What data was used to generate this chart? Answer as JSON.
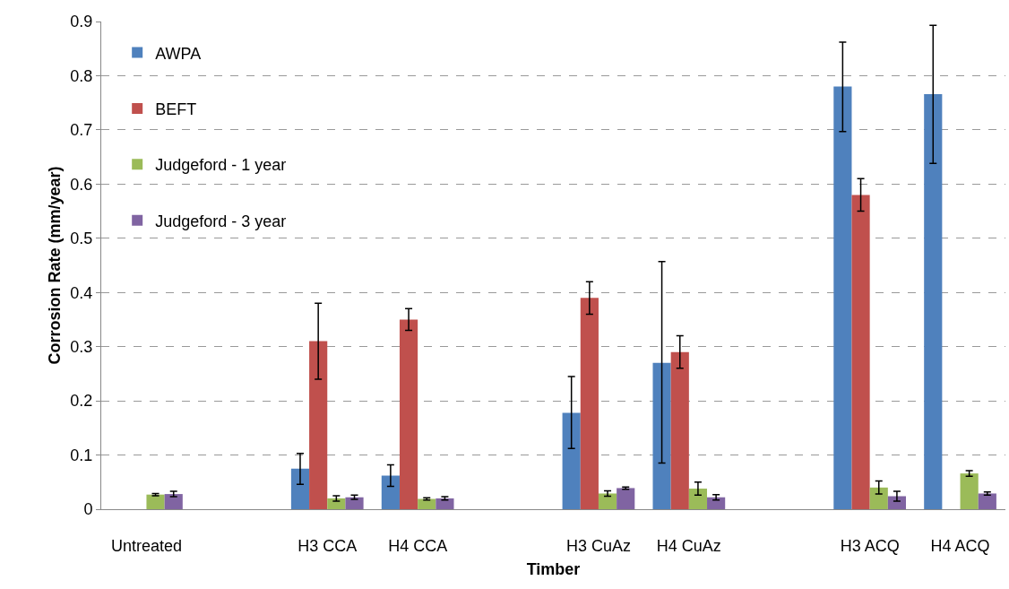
{
  "chart_data": {
    "type": "bar",
    "xlabel": "Timber",
    "ylabel": "Corrosion Rate (mm/year)",
    "categories": [
      "Untreated",
      null,
      "H3 CCA",
      "H4 CCA",
      null,
      "H3 CuAz",
      "H4 CuAz",
      null,
      "H3 ACQ",
      "H4 ACQ"
    ],
    "series": [
      {
        "name": "AWPA",
        "color": "#4f81bd",
        "values": [
          null,
          null,
          0.075,
          0.062,
          null,
          0.178,
          0.27,
          null,
          0.78,
          0.766
        ],
        "errors": [
          null,
          null,
          [
            0.046,
            0.103
          ],
          [
            0.042,
            0.082
          ],
          null,
          [
            0.112,
            0.245
          ],
          [
            0.085,
            0.457
          ],
          null,
          [
            0.697,
            0.862
          ],
          [
            0.638,
            0.893
          ]
        ]
      },
      {
        "name": "BEFT",
        "color": "#c0504d",
        "values": [
          null,
          null,
          0.31,
          0.35,
          null,
          0.39,
          0.29,
          null,
          0.58,
          null
        ],
        "errors": [
          null,
          null,
          [
            0.24,
            0.38
          ],
          [
            0.33,
            0.37
          ],
          null,
          [
            0.36,
            0.42
          ],
          [
            0.26,
            0.32
          ],
          null,
          [
            0.55,
            0.61
          ],
          null
        ]
      },
      {
        "name": "Judgeford - 1 year",
        "color": "#9bbb59",
        "values": [
          0.027,
          null,
          0.02,
          0.019,
          null,
          0.029,
          0.038,
          null,
          0.04,
          0.066
        ],
        "errors": [
          0.002,
          null,
          0.005,
          0.002,
          null,
          0.005,
          0.012,
          null,
          0.012,
          0.005
        ]
      },
      {
        "name": "Judgeford - 3 year",
        "color": "#8064a2",
        "values": [
          0.028,
          null,
          0.022,
          0.02,
          null,
          0.039,
          0.022,
          null,
          0.024,
          0.029
        ],
        "errors": [
          0.005,
          null,
          0.004,
          0.003,
          null,
          0.002,
          0.005,
          null,
          0.009,
          0.003
        ]
      }
    ],
    "ylim": [
      0,
      0.9
    ],
    "yticks": [
      0,
      0.1,
      0.2,
      0.3,
      0.4,
      0.5,
      0.6,
      0.7,
      0.8,
      0.9
    ],
    "grid": "y",
    "legend": "top left"
  }
}
